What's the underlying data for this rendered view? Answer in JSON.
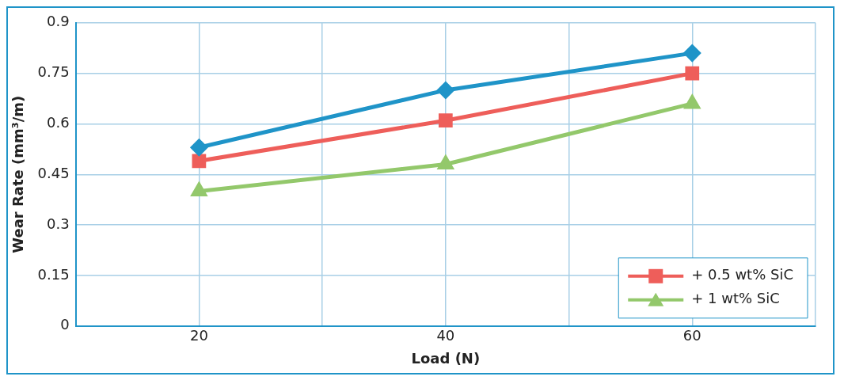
{
  "chart_data": {
    "type": "line",
    "xlabel": "Load (N)",
    "ylabel": "Wear Rate (mm³/m)",
    "x": [
      20,
      40,
      60
    ],
    "xlim": [
      10,
      70
    ],
    "xticks": [
      {
        "value": 10,
        "label": null
      },
      20,
      {
        "value": 30,
        "label": null
      },
      40,
      {
        "value": 50,
        "label": null
      },
      60,
      {
        "value": 70,
        "label": null
      }
    ],
    "ylim": [
      0,
      0.9
    ],
    "yticks": [
      0,
      0.15,
      0.3,
      0.45,
      0.6,
      0.75,
      0.9
    ],
    "grid": true,
    "legend": "bottom right",
    "line_style": "solid",
    "series": [
      {
        "color": "#1f94c8",
        "marker": "diamond",
        "values": [
          0.53,
          0.7,
          0.81
        ]
      },
      {
        "name": "+ 0.5 wt% SiC",
        "color": "#ee5e5a",
        "marker": "square",
        "values": [
          0.49,
          0.61,
          0.75
        ]
      },
      {
        "name": "+ 1 wt% SiC",
        "color": "#93c86b",
        "marker": "triangle",
        "values": [
          0.4,
          0.48,
          0.66
        ]
      }
    ]
  }
}
